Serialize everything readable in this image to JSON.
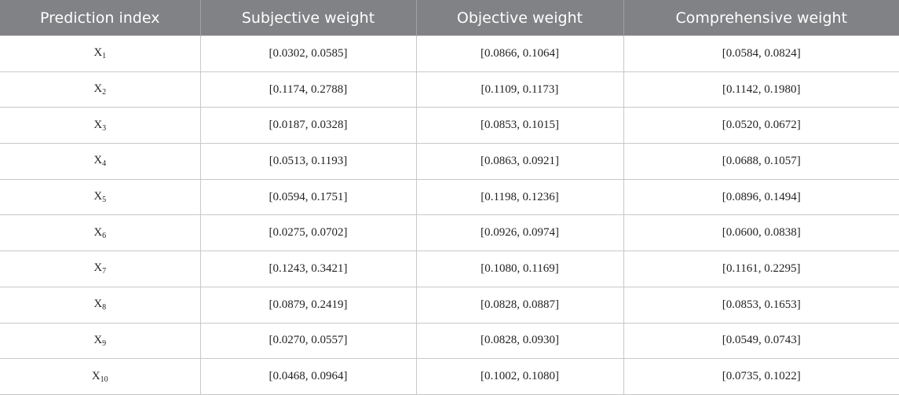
{
  "table": {
    "header": [
      "Prediction index",
      "Subjective weight",
      "Objective weight",
      "Comprehensive weight"
    ],
    "rows": [
      [
        {
          "base": "X",
          "sub": "1"
        },
        "[0.0302, 0.0585]",
        "[0.0866, 0.1064]",
        "[0.0584, 0.0824]"
      ],
      [
        {
          "base": "X",
          "sub": "2"
        },
        "[0.1174, 0.2788]",
        "[0.1109, 0.1173]",
        "[0.1142, 0.1980]"
      ],
      [
        {
          "base": "X",
          "sub": "3"
        },
        "[0.0187, 0.0328]",
        "[0.0853, 0.1015]",
        "[0.0520, 0.0672]"
      ],
      [
        {
          "base": "X",
          "sub": "4"
        },
        "[0.0513, 0.1193]",
        "[0.0863, 0.0921]",
        "[0.0688, 0.1057]"
      ],
      [
        {
          "base": "X",
          "sub": "5"
        },
        "[0.0594, 0.1751]",
        "[0.1198, 0.1236]",
        "[0.0896, 0.1494]"
      ],
      [
        {
          "base": "X",
          "sub": "6"
        },
        "[0.0275, 0.0702]",
        "[0.0926, 0.0974]",
        "[0.0600, 0.0838]"
      ],
      [
        {
          "base": "X",
          "sub": "7"
        },
        "[0.1243, 0.3421]",
        "[0.1080, 0.1169]",
        "[0.1161, 0.2295]"
      ],
      [
        {
          "base": "X",
          "sub": "8"
        },
        "[0.0879, 0.2419]",
        "[0.0828, 0.0887]",
        "[0.0853, 0.1653]"
      ],
      [
        {
          "base": "X",
          "sub": "9"
        },
        "[0.0270, 0.0557]",
        "[0.0828, 0.0930]",
        "[0.0549, 0.0743]"
      ],
      [
        {
          "base": "X",
          "sub": "10"
        },
        "[0.0468, 0.0964]",
        "[0.1002, 0.1080]",
        "[0.0735, 0.1022]"
      ]
    ]
  }
}
